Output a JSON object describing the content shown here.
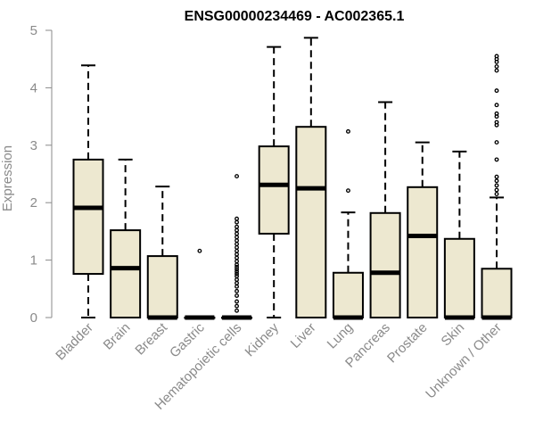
{
  "chart_data": {
    "type": "boxplot",
    "title": "ENSG00000234469 - AC002365.1",
    "ylabel": "Expression",
    "xlabel": "",
    "ylim": [
      0,
      5
    ],
    "yticks": [
      "0",
      "1",
      "2",
      "3",
      "4",
      "5"
    ],
    "grid": false,
    "legend": "none",
    "colors": {
      "box_fill": "#ede8d0",
      "stroke": "#000000",
      "axis_text": "#8a8a8a"
    },
    "categories": [
      "Bladder",
      "Brain",
      "Breast",
      "Gastric",
      "Hematopoietic cells",
      "Kidney",
      "Liver",
      "Lung",
      "Pancreas",
      "Prostate",
      "Skin",
      "Unknown / Other"
    ],
    "boxes": [
      {
        "min": 0,
        "q1": 0.76,
        "median": 1.91,
        "q3": 2.75,
        "max": 4.39,
        "outliers": []
      },
      {
        "min": 0,
        "q1": 0,
        "median": 0.86,
        "q3": 1.52,
        "max": 2.75,
        "outliers": []
      },
      {
        "min": 0,
        "q1": 0,
        "median": 0,
        "q3": 1.07,
        "max": 2.28,
        "outliers": []
      },
      {
        "min": 0,
        "q1": 0,
        "median": 0,
        "q3": 0,
        "max": 0,
        "outliers": [
          1.16
        ]
      },
      {
        "min": 0,
        "q1": 0,
        "median": 0,
        "q3": 0,
        "max": 0,
        "outliers": [
          2.46,
          1.72,
          1.66,
          1.58,
          1.52,
          1.46,
          1.4,
          1.34,
          1.28,
          1.22,
          1.16,
          1.1,
          1.04,
          0.98,
          0.92,
          0.88,
          0.84,
          0.8,
          0.76,
          0.72,
          0.66,
          0.6,
          0.54,
          0.46,
          0.38,
          0.28,
          0.2,
          0.12
        ]
      },
      {
        "min": 0,
        "q1": 1.46,
        "median": 2.31,
        "q3": 2.98,
        "max": 4.71,
        "outliers": []
      },
      {
        "min": 0,
        "q1": 0,
        "median": 2.25,
        "q3": 3.32,
        "max": 4.87,
        "outliers": []
      },
      {
        "min": 0,
        "q1": 0,
        "median": 0,
        "q3": 0.78,
        "max": 1.83,
        "outliers": [
          3.24,
          2.21
        ]
      },
      {
        "min": 0,
        "q1": 0,
        "median": 0.78,
        "q3": 1.82,
        "max": 3.75,
        "outliers": []
      },
      {
        "min": 0,
        "q1": 0,
        "median": 1.42,
        "q3": 2.27,
        "max": 3.05,
        "outliers": []
      },
      {
        "min": 0,
        "q1": 0,
        "median": 0,
        "q3": 1.37,
        "max": 2.89,
        "outliers": []
      },
      {
        "min": 0,
        "q1": 0,
        "median": 0,
        "q3": 0.85,
        "max": 2.09,
        "outliers": [
          4.55,
          4.5,
          4.45,
          4.37,
          4.3,
          3.95,
          3.7,
          3.55,
          3.5,
          3.4,
          3.35,
          3.05,
          2.75,
          2.45,
          2.38,
          2.3,
          2.22,
          2.15
        ]
      }
    ]
  }
}
